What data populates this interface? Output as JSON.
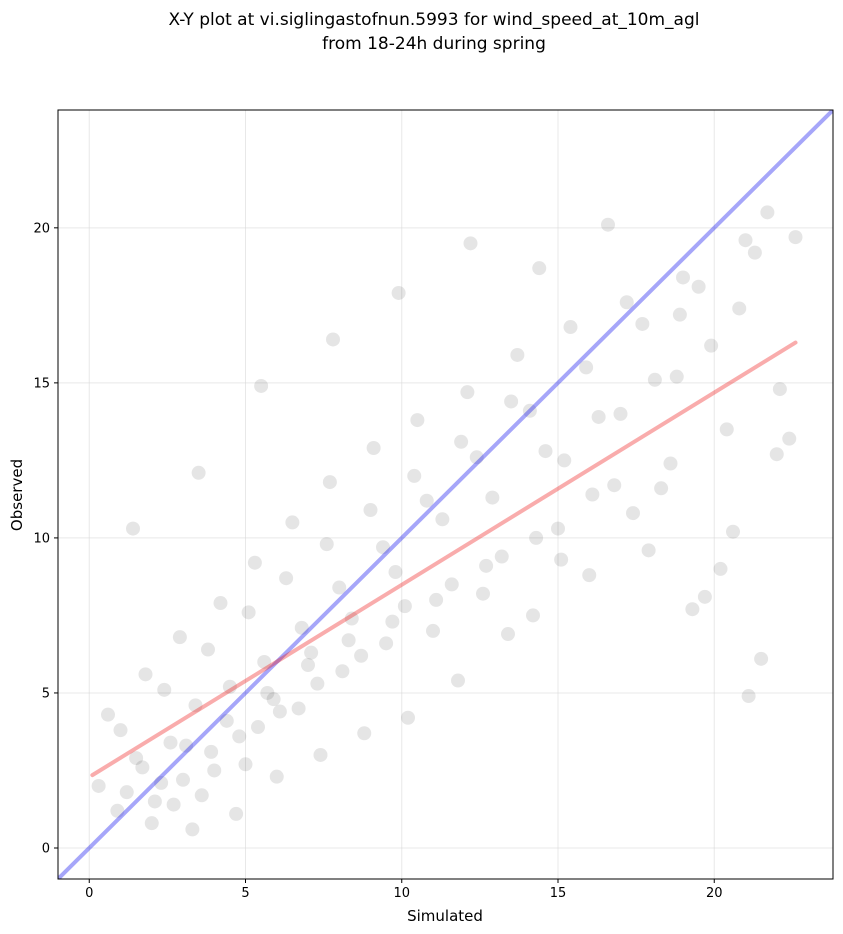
{
  "chart_data": {
    "type": "scatter",
    "title": [
      "X-Y plot at vi.siglingastofnun.5993 for wind_speed_at_10m_agl",
      "from 18-24h during spring"
    ],
    "xlabel": "Simulated",
    "ylabel": "Observed",
    "xlim": [
      -1,
      23.8
    ],
    "ylim": [
      -1,
      23.8
    ],
    "xticks": [
      0,
      5,
      10,
      15,
      20
    ],
    "yticks": [
      0,
      5,
      10,
      15,
      20
    ],
    "grid": true,
    "colors": {
      "points": "#000000",
      "identity_line": "#0000ee",
      "fit_line": "#ee1111"
    },
    "identity_line": {
      "x": [
        -1,
        23.8
      ],
      "y": [
        -1,
        23.8
      ]
    },
    "fit_line": {
      "x": [
        0.1,
        22.6
      ],
      "y": [
        2.35,
        16.3
      ]
    },
    "points": {
      "x": [
        1.2,
        1.5,
        2.1,
        2.6,
        3.0,
        3.4,
        3.9,
        4.5,
        5.0,
        5.6,
        6.1,
        6.8,
        7.3,
        8.0,
        8.7,
        9.4,
        10.1,
        10.8,
        11.6,
        12.4,
        13.2,
        14.1,
        15.0,
        15.9,
        16.8,
        17.7,
        18.6,
        19.5,
        20.4,
        21.3,
        22.1,
        22.6,
        0.6,
        0.9,
        1.8,
        2.3,
        2.9,
        3.6,
        4.2,
        4.8,
        5.3,
        5.9,
        6.5,
        7.1,
        7.7,
        8.4,
        9.1,
        9.8,
        10.5,
        11.3,
        12.1,
        12.9,
        13.7,
        14.6,
        15.4,
        16.3,
        17.2,
        18.1,
        19.0,
        19.9,
        20.8,
        21.7,
        0.3,
        1.0,
        1.7,
        2.4,
        3.1,
        3.8,
        4.4,
        5.1,
        5.7,
        6.3,
        7.0,
        7.6,
        8.3,
        9.0,
        9.7,
        10.4,
        11.1,
        11.9,
        12.7,
        13.5,
        14.3,
        15.2,
        16.1,
        17.0,
        17.9,
        18.8,
        19.7,
        20.6,
        21.5,
        22.4,
        2.0,
        2.7,
        3.3,
        4.0,
        4.7,
        5.4,
        6.0,
        6.7,
        7.4,
        8.1,
        8.8,
        9.5,
        10.2,
        11.0,
        11.8,
        12.6,
        13.4,
        14.2,
        15.1,
        16.0,
        17.4,
        18.3,
        19.3,
        20.2,
        21.1,
        22.0,
        1.4,
        3.5,
        5.5,
        7.8,
        9.9,
        12.2,
        14.4,
        16.6,
        18.9,
        21.0
      ],
      "y": [
        1.8,
        2.9,
        1.5,
        3.4,
        2.2,
        4.6,
        3.1,
        5.2,
        2.7,
        6.0,
        4.4,
        7.1,
        5.3,
        8.4,
        6.2,
        9.7,
        7.8,
        11.2,
        8.5,
        12.6,
        9.4,
        14.1,
        10.3,
        15.5,
        11.7,
        16.9,
        12.4,
        18.1,
        13.5,
        19.2,
        14.8,
        19.7,
        4.3,
        1.2,
        5.6,
        2.1,
        6.8,
        1.7,
        7.9,
        3.6,
        9.2,
        4.8,
        10.5,
        6.3,
        11.8,
        7.4,
        12.9,
        8.9,
        13.8,
        10.6,
        14.7,
        11.3,
        15.9,
        12.8,
        16.8,
        13.9,
        17.6,
        15.1,
        18.4,
        16.2,
        17.4,
        20.5,
        2.0,
        3.8,
        2.6,
        5.1,
        3.3,
        6.4,
        4.1,
        7.6,
        5.0,
        8.7,
        5.9,
        9.8,
        6.7,
        10.9,
        7.3,
        12.0,
        8.0,
        13.1,
        9.1,
        14.4,
        10.0,
        12.5,
        11.4,
        14.0,
        9.6,
        15.2,
        8.1,
        10.2,
        6.1,
        13.2,
        0.8,
        1.4,
        0.6,
        2.5,
        1.1,
        3.9,
        2.3,
        4.5,
        3.0,
        5.7,
        3.7,
        6.6,
        4.2,
        7.0,
        5.4,
        8.2,
        6.9,
        7.5,
        9.3,
        8.8,
        10.8,
        11.6,
        7.7,
        9.0,
        4.9,
        12.7,
        10.3,
        12.1,
        14.9,
        16.4,
        17.9,
        19.5,
        18.7,
        20.1,
        17.2,
        19.6
      ]
    }
  }
}
